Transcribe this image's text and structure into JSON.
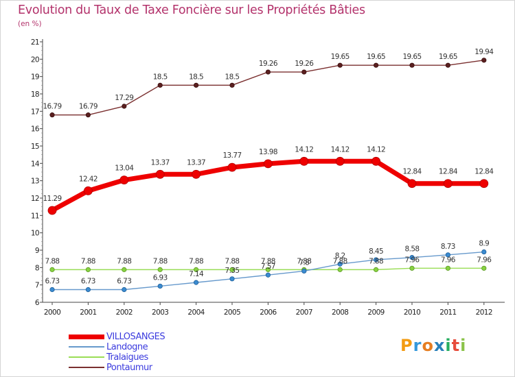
{
  "chart_data": {
    "type": "line",
    "title": "Evolution du Taux de Taxe Foncière sur les Propriétés Bâties",
    "ylabel": "(en %)",
    "xlabel": "",
    "x": [
      "2000",
      "2001",
      "2002",
      "2003",
      "2004",
      "2005",
      "2006",
      "2007",
      "2008",
      "2009",
      "2010",
      "2011",
      "2012"
    ],
    "ylim": [
      6,
      21
    ],
    "yticks": [
      "6",
      "7",
      "8",
      "9",
      "10",
      "11",
      "12",
      "13",
      "14",
      "15",
      "16",
      "17",
      "18",
      "19",
      "20",
      "21"
    ],
    "grid": false,
    "legend_position": "bottom-left",
    "series": [
      {
        "name": "VILLOSANGES",
        "color": "#ee0000",
        "values": [
          11.29,
          12.42,
          13.04,
          13.37,
          13.37,
          13.77,
          13.98,
          14.12,
          14.12,
          14.12,
          12.84,
          12.84,
          12.84
        ],
        "labels": [
          "11.29",
          "12.42",
          "13.04",
          "13.37",
          "13.37",
          "13.77",
          "13.98",
          "14.12",
          "14.12",
          "14.12",
          "12.84",
          "12.84",
          "12.84"
        ]
      },
      {
        "name": "Landogne",
        "color": "#6699cc",
        "values": [
          6.73,
          6.73,
          6.73,
          6.93,
          7.14,
          7.35,
          7.57,
          7.8,
          8.2,
          8.45,
          8.58,
          8.73,
          8.9
        ],
        "labels": [
          "6.73",
          "6.73",
          "6.73",
          "6.93",
          "7.14",
          "7.35",
          "7.57",
          "7.8",
          "8.2",
          "8.45",
          "8.58",
          "8.73",
          "8.9"
        ]
      },
      {
        "name": "Tralaigues",
        "color": "#99dd55",
        "values": [
          7.88,
          7.88,
          7.88,
          7.88,
          7.88,
          7.88,
          7.88,
          7.88,
          7.88,
          7.88,
          7.96,
          7.96,
          7.96
        ],
        "labels": [
          "7.88",
          "7.88",
          "7.88",
          "7.88",
          "7.88",
          "7.88",
          "7.88",
          "7.88",
          "7.88",
          "7.88",
          "7.96",
          "7.96",
          "7.96"
        ]
      },
      {
        "name": "Pontaumur",
        "color": "#7a2f2f",
        "values": [
          16.79,
          16.79,
          17.29,
          18.5,
          18.5,
          18.5,
          19.26,
          19.26,
          19.65,
          19.65,
          19.65,
          19.65,
          19.94
        ],
        "labels": [
          "16.79",
          "16.79",
          "17.29",
          "18.5",
          "18.5",
          "18.5",
          "19.26",
          "19.26",
          "19.65",
          "19.65",
          "19.65",
          "19.65",
          "19.94"
        ]
      }
    ]
  },
  "brand": {
    "logo_letters": [
      "P",
      "r",
      "o",
      "x",
      "i",
      "t",
      "i"
    ],
    "logo_colors": [
      "#f39c12",
      "#3498db",
      "#e67e22",
      "#2980b9",
      "#27ae60",
      "#e74c3c",
      "#8bc34a"
    ]
  }
}
